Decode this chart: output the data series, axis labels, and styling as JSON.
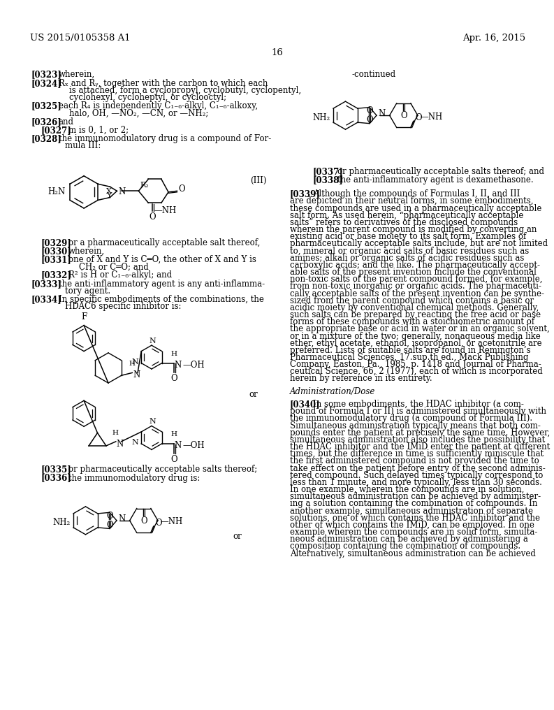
{
  "bg_color": "#ffffff",
  "header_left": "US 2015/0105358 A1",
  "header_right": "Apr. 16, 2015",
  "page_number": "16"
}
